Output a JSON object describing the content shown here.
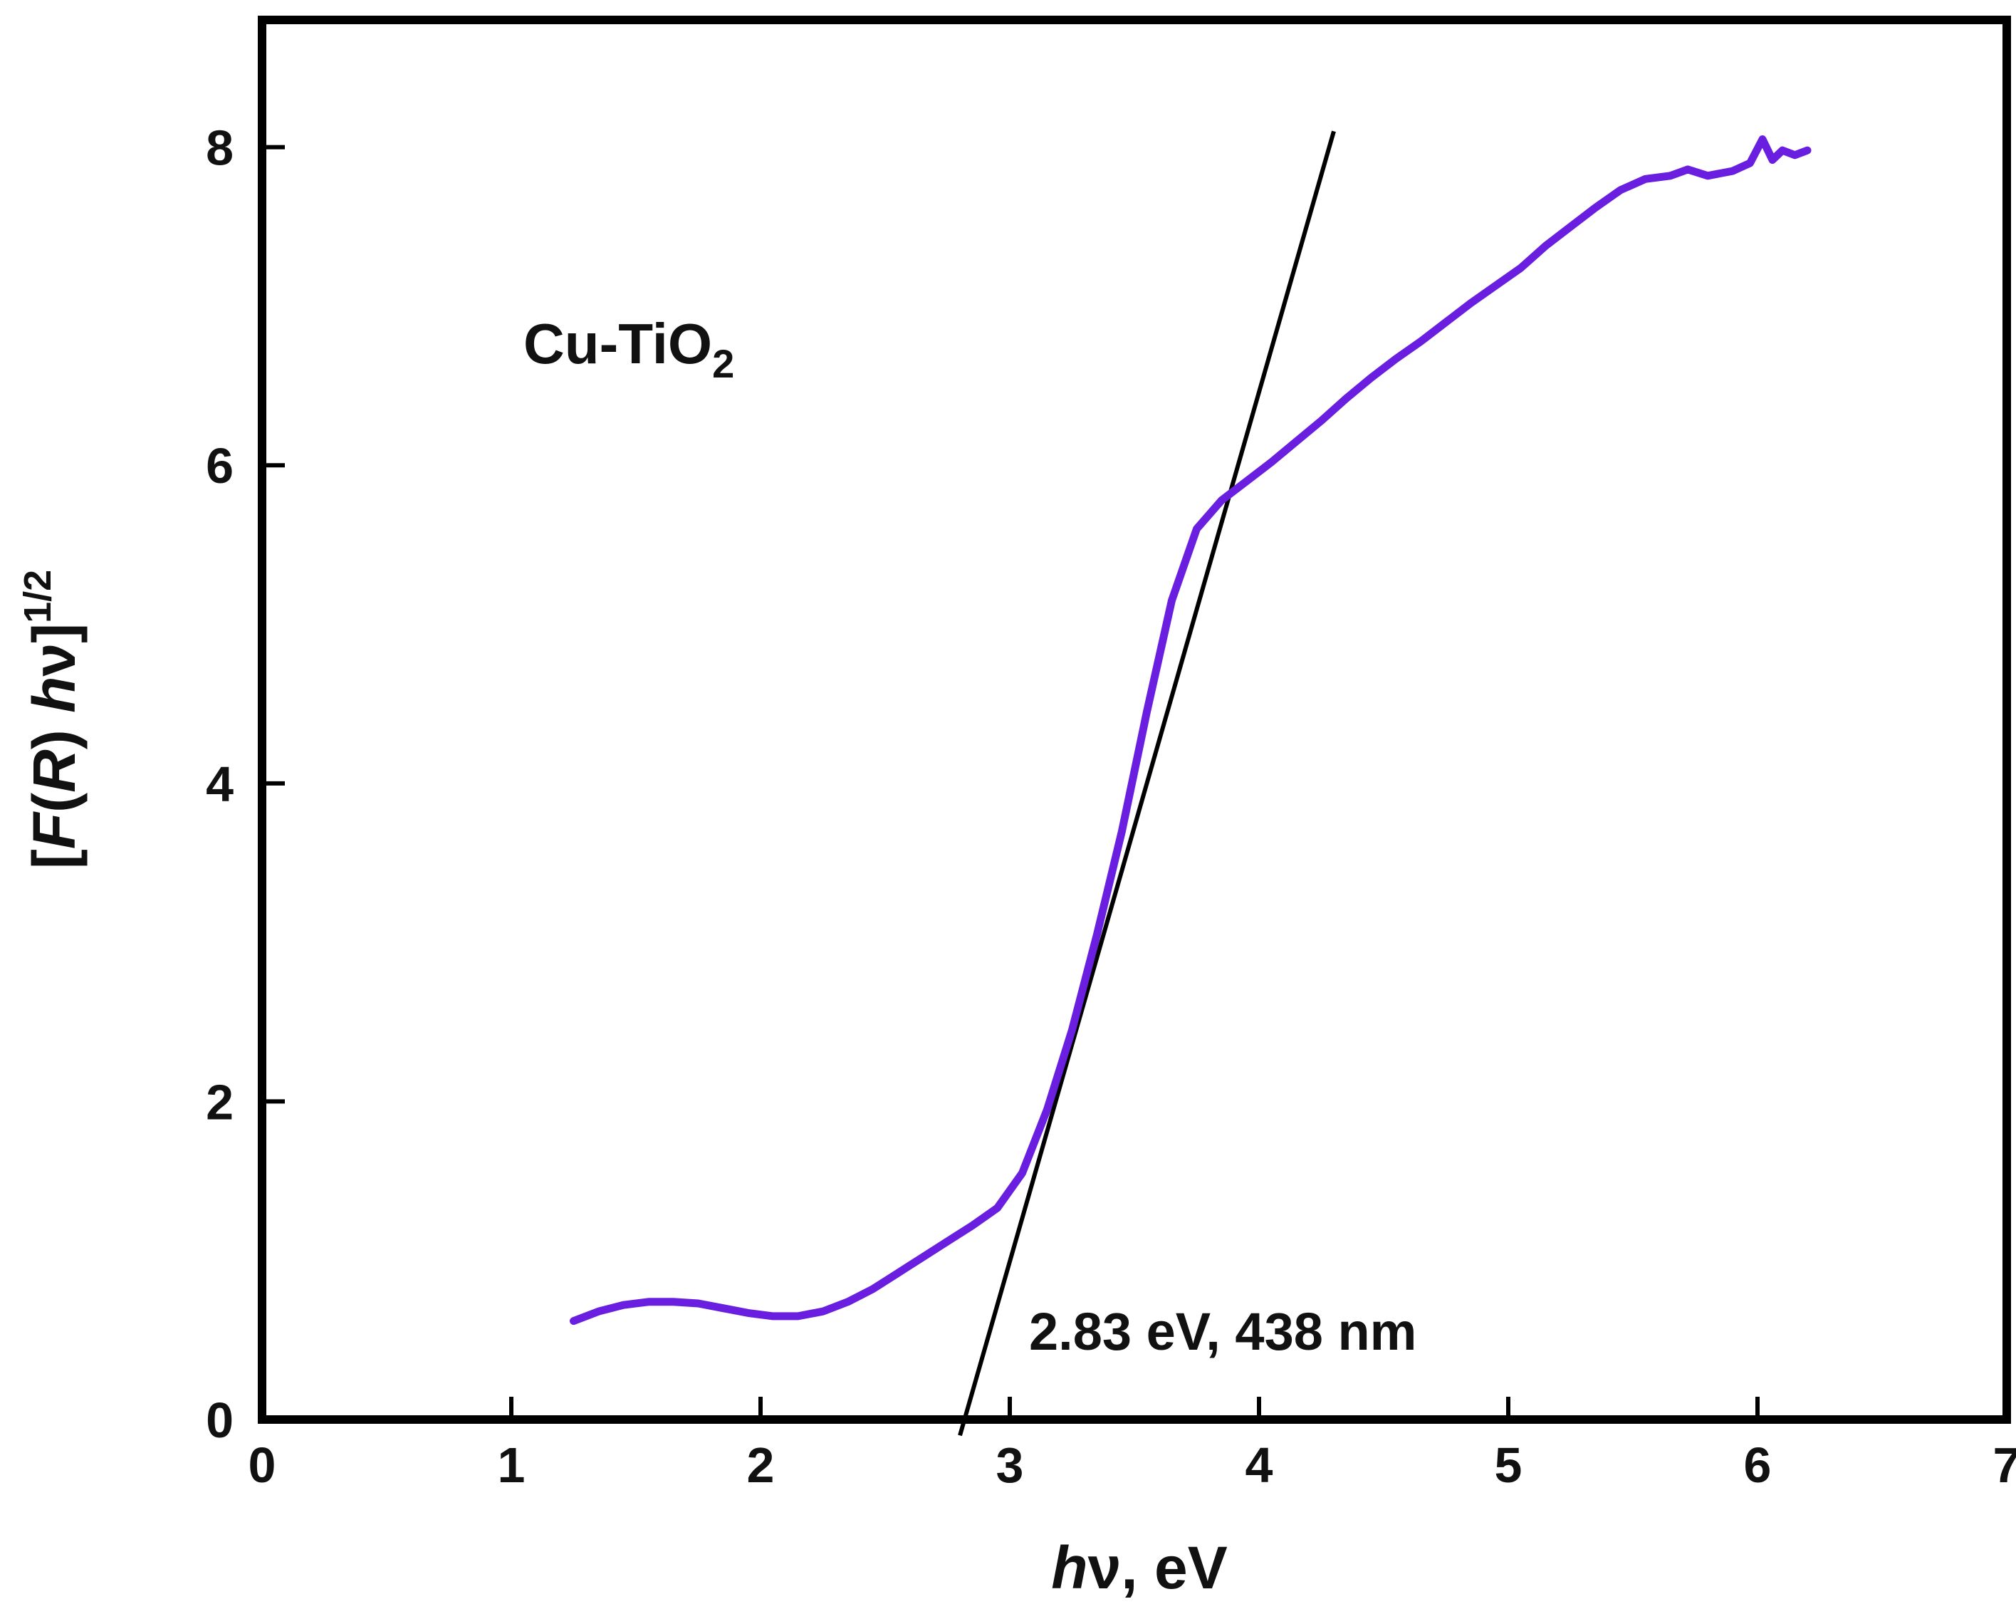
{
  "chart_data": {
    "type": "line",
    "title": "",
    "sample_label": {
      "main": "Cu-TiO",
      "sub": "2"
    },
    "xlabel": {
      "italic": "h",
      "rest": "ν, eV"
    },
    "ylabel": {
      "open": "[",
      "F": "F",
      "paren_open": "(",
      "R": "R",
      "paren_close": ") ",
      "h": "h",
      "nu": "ν",
      "close": "]",
      "exp": "1/2"
    },
    "xlim": [
      0,
      7
    ],
    "ylim": [
      0,
      8.8
    ],
    "xticks": [
      "0",
      "1",
      "2",
      "3",
      "4",
      "5",
      "6",
      "7"
    ],
    "yticks": [
      "0",
      "2",
      "4",
      "6",
      "8"
    ],
    "grid": false,
    "annotation": "2.83 eV, 438 nm",
    "colors": {
      "series": "#6a1fe0",
      "fit": "#000000",
      "axis": "#000000"
    },
    "series": [
      {
        "name": "Cu-TiO2",
        "x": [
          1.25,
          1.35,
          1.45,
          1.55,
          1.65,
          1.75,
          1.85,
          1.95,
          2.05,
          2.15,
          2.25,
          2.35,
          2.45,
          2.55,
          2.65,
          2.75,
          2.85,
          2.95,
          3.05,
          3.15,
          3.25,
          3.35,
          3.45,
          3.55,
          3.65,
          3.75,
          3.85,
          3.95,
          4.05,
          4.15,
          4.25,
          4.35,
          4.45,
          4.55,
          4.65,
          4.75,
          4.85,
          4.95,
          5.05,
          5.15,
          5.25,
          5.35,
          5.45,
          5.55,
          5.65,
          5.72,
          5.8,
          5.9,
          5.97,
          6.02,
          6.06,
          6.1,
          6.15,
          6.2
        ],
        "y": [
          0.62,
          0.68,
          0.72,
          0.74,
          0.74,
          0.73,
          0.7,
          0.67,
          0.65,
          0.65,
          0.68,
          0.74,
          0.82,
          0.92,
          1.02,
          1.12,
          1.22,
          1.33,
          1.55,
          1.95,
          2.45,
          3.05,
          3.7,
          4.45,
          5.15,
          5.6,
          5.78,
          5.9,
          6.02,
          6.15,
          6.28,
          6.42,
          6.55,
          6.67,
          6.78,
          6.9,
          7.02,
          7.13,
          7.24,
          7.38,
          7.5,
          7.62,
          7.73,
          7.8,
          7.82,
          7.86,
          7.82,
          7.85,
          7.9,
          8.05,
          7.92,
          7.98,
          7.95,
          7.98
        ]
      }
    ],
    "fit_line": {
      "name": "tangent",
      "x": [
        2.8,
        4.3
      ],
      "y": [
        -0.1,
        8.1
      ]
    }
  }
}
